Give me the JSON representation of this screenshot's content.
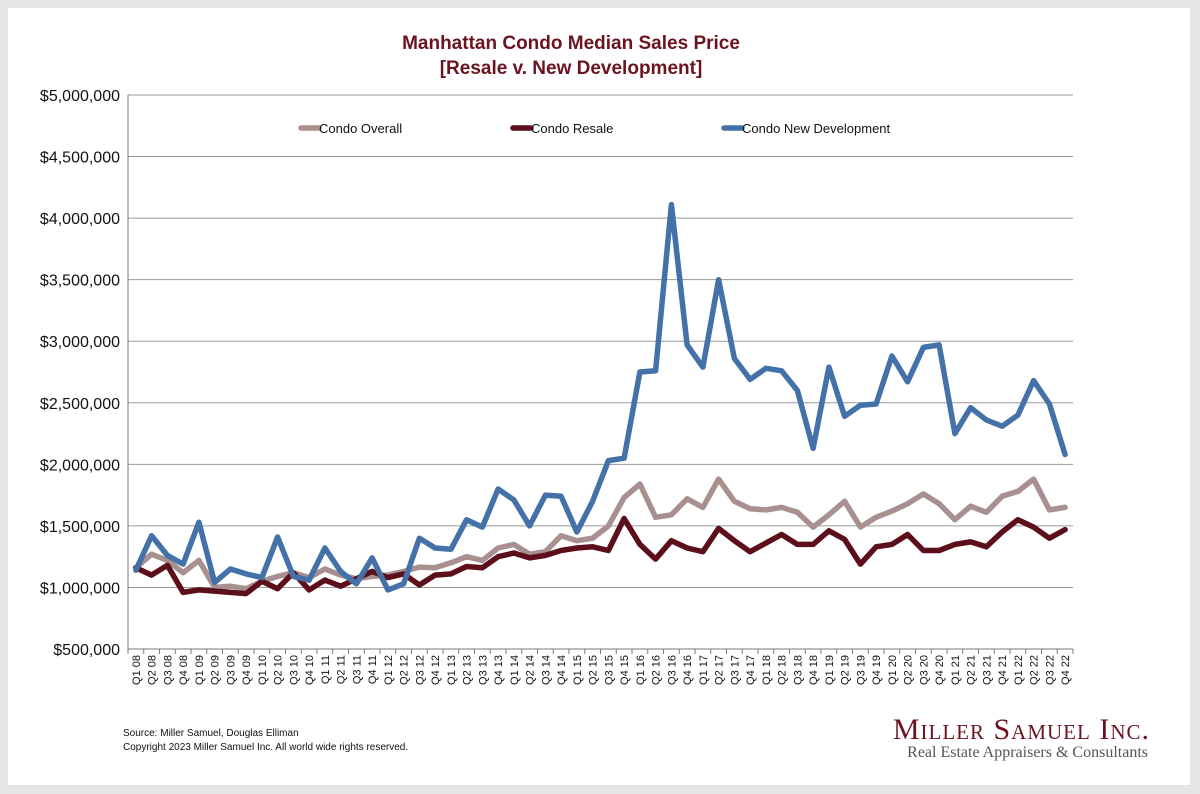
{
  "chart_data": {
    "type": "line",
    "title": "Manhattan Condo Median Sales Price",
    "subtitle": "[Resale v. New Development]",
    "xlabel": "",
    "ylabel": "",
    "ylim": [
      500000,
      5000000
    ],
    "yticks": [
      500000,
      1000000,
      1500000,
      2000000,
      2500000,
      3000000,
      3500000,
      4000000,
      4500000,
      5000000
    ],
    "ytick_labels": [
      "$500,000",
      "$1,000,000",
      "$1,500,000",
      "$2,000,000",
      "$2,500,000",
      "$3,000,000",
      "$3,500,000",
      "$4,000,000",
      "$4,500,000",
      "$5,000,000"
    ],
    "grid": true,
    "legend": "top",
    "categories": [
      "Q1 08",
      "Q2 08",
      "Q3 08",
      "Q4 08",
      "Q1 09",
      "Q2 09",
      "Q3 09",
      "Q4 09",
      "Q1 10",
      "Q2 10",
      "Q3 10",
      "Q4 10",
      "Q1 11",
      "Q2 11",
      "Q3 11",
      "Q4 11",
      "Q1 12",
      "Q2 12",
      "Q3 12",
      "Q4 12",
      "Q1 13",
      "Q2 13",
      "Q3 13",
      "Q4 13",
      "Q1 14",
      "Q2 14",
      "Q3 14",
      "Q4 14",
      "Q1 15",
      "Q2 15",
      "Q3 15",
      "Q4 15",
      "Q1 16",
      "Q2 16",
      "Q3 16",
      "Q4 16",
      "Q1 17",
      "Q2 17",
      "Q3 17",
      "Q4 17",
      "Q1 18",
      "Q2 18",
      "Q3 18",
      "Q4 18",
      "Q1 19",
      "Q2 19",
      "Q3 19",
      "Q4 19",
      "Q1 20",
      "Q2 20",
      "Q3 20",
      "Q4 20",
      "Q1 21",
      "Q2 21",
      "Q3 21",
      "Q4 21",
      "Q1 22",
      "Q2 22",
      "Q3 22",
      "Q4 22"
    ],
    "series": [
      {
        "name": "Condo Overall",
        "color": "#a89090",
        "values": [
          1160000,
          1270000,
          1220000,
          1120000,
          1220000,
          1000000,
          1010000,
          990000,
          1050000,
          1090000,
          1120000,
          1080000,
          1150000,
          1100000,
          1070000,
          1090000,
          1100000,
          1130000,
          1165000,
          1160000,
          1200000,
          1250000,
          1220000,
          1320000,
          1350000,
          1270000,
          1290000,
          1420000,
          1380000,
          1400000,
          1500000,
          1730000,
          1840000,
          1570000,
          1590000,
          1720000,
          1650000,
          1880000,
          1700000,
          1640000,
          1630000,
          1650000,
          1610000,
          1490000,
          1590000,
          1700000,
          1490000,
          1570000,
          1620000,
          1680000,
          1760000,
          1680000,
          1550000,
          1660000,
          1610000,
          1740000,
          1780000,
          1880000,
          1630000,
          1650000
        ]
      },
      {
        "name": "Condo Resale",
        "color": "#5c0f1b",
        "values": [
          1160000,
          1100000,
          1180000,
          960000,
          980000,
          970000,
          960000,
          950000,
          1050000,
          990000,
          1120000,
          980000,
          1060000,
          1010000,
          1070000,
          1130000,
          1080000,
          1110000,
          1020000,
          1100000,
          1110000,
          1170000,
          1160000,
          1250000,
          1280000,
          1240000,
          1260000,
          1300000,
          1320000,
          1330000,
          1300000,
          1560000,
          1350000,
          1230000,
          1380000,
          1320000,
          1290000,
          1480000,
          1380000,
          1290000,
          1360000,
          1430000,
          1350000,
          1350000,
          1460000,
          1390000,
          1190000,
          1330000,
          1350000,
          1430000,
          1300000,
          1300000,
          1350000,
          1370000,
          1330000,
          1450000,
          1550000,
          1490000,
          1400000,
          1470000
        ]
      },
      {
        "name": "Condo New Development",
        "color": "#4472a8",
        "values": [
          1140000,
          1420000,
          1260000,
          1190000,
          1530000,
          1040000,
          1150000,
          1110000,
          1080000,
          1410000,
          1090000,
          1060000,
          1320000,
          1130000,
          1030000,
          1240000,
          980000,
          1030000,
          1400000,
          1320000,
          1310000,
          1550000,
          1490000,
          1800000,
          1710000,
          1500000,
          1750000,
          1740000,
          1450000,
          1700000,
          2030000,
          2050000,
          2750000,
          2760000,
          4110000,
          2970000,
          2790000,
          3500000,
          2860000,
          2690000,
          2780000,
          2760000,
          2600000,
          2130000,
          2790000,
          2390000,
          2480000,
          2490000,
          2880000,
          2670000,
          2950000,
          2970000,
          2250000,
          2460000,
          2360000,
          2310000,
          2400000,
          2680000,
          2490000,
          2080000
        ]
      }
    ]
  },
  "footer": {
    "source": "Source: Miller Samuel, Douglas Elliman",
    "copyright": "Copyright 2023 Miller Samuel Inc.  All world wide rights reserved."
  },
  "logo": {
    "name": "Miller Samuel Inc.",
    "tagline": "Real Estate Appraisers & Consultants"
  }
}
